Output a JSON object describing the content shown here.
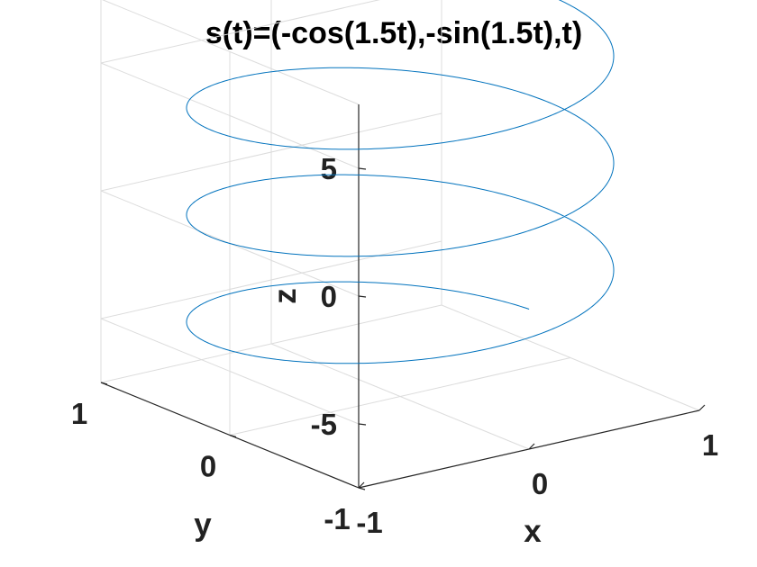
{
  "chart_data": {
    "type": "line3d",
    "title": "s(t)=(-cos(1.5t),-sin(1.5t),t)",
    "xlabel": "x",
    "ylabel": "y",
    "zlabel": "z",
    "xlim": [
      -1,
      1
    ],
    "ylim": [
      -1,
      1
    ],
    "zlim": [
      -7.5,
      7.5
    ],
    "xticks": [
      {
        "v": -1,
        "label": "-1"
      },
      {
        "v": 0,
        "label": "0"
      },
      {
        "v": 1,
        "label": "1"
      }
    ],
    "yticks": [
      {
        "v": -1,
        "label": "-1"
      },
      {
        "v": 0,
        "label": "0"
      },
      {
        "v": 1,
        "label": "1"
      }
    ],
    "zticks": [
      {
        "v": -5,
        "label": "-5"
      },
      {
        "v": 0,
        "label": "0"
      },
      {
        "v": 5,
        "label": "5"
      }
    ],
    "grid": true,
    "series": [
      {
        "x_expr": "-cos(1.5t)",
        "y_expr": "-sin(1.5t)",
        "z_expr": "t",
        "t_range": [
          -6.1,
          7.5
        ],
        "color": "#0072bd"
      }
    ]
  }
}
